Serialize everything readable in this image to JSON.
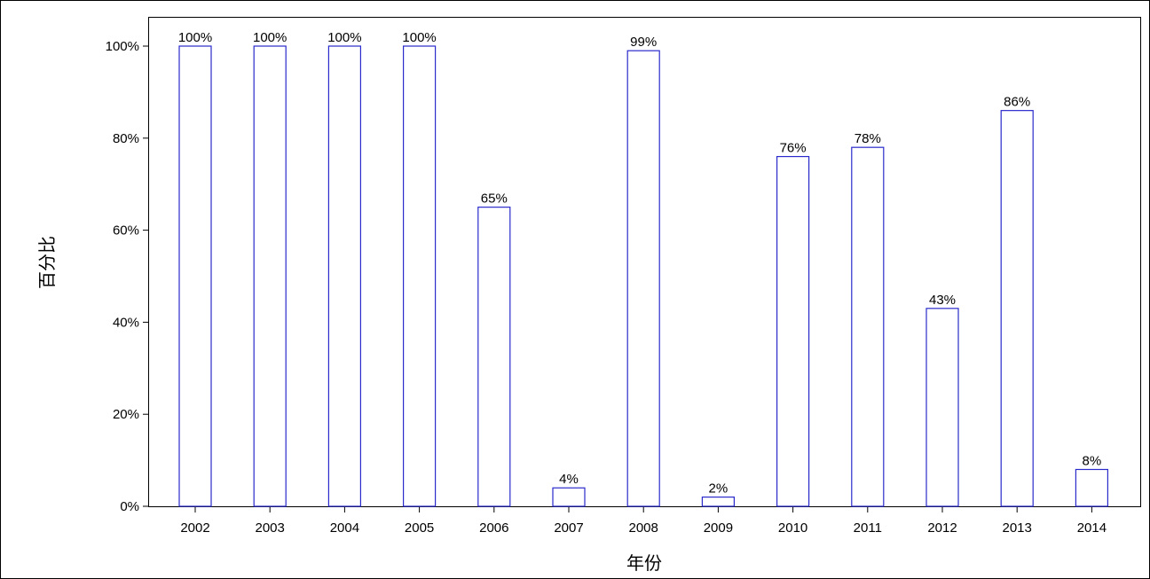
{
  "chart_data": {
    "type": "bar",
    "categories": [
      "2002",
      "2003",
      "2004",
      "2005",
      "2006",
      "2007",
      "2008",
      "2009",
      "2010",
      "2011",
      "2012",
      "2013",
      "2014"
    ],
    "values": [
      100,
      100,
      100,
      100,
      65,
      4,
      99,
      2,
      76,
      78,
      43,
      86,
      8
    ],
    "data_labels": [
      "100%",
      "100%",
      "100%",
      "100%",
      "65%",
      "4%",
      "99%",
      "2%",
      "76%",
      "78%",
      "43%",
      "86%",
      "8%"
    ],
    "xlabel": "年份",
    "ylabel": "百分比",
    "ylim": [
      0,
      100
    ],
    "yticks": [
      0,
      20,
      40,
      60,
      80,
      100
    ],
    "ytick_labels": [
      "0%",
      "20%",
      "40%",
      "60%",
      "80%",
      "100%"
    ],
    "grid": false,
    "bar_color": "#2a2acc"
  }
}
